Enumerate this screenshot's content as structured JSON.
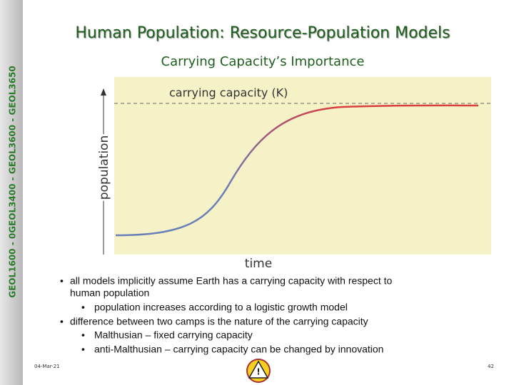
{
  "header": {
    "title": "Human Population: Resource-Population Models",
    "subtitle": "Carrying Capacity’s Importance"
  },
  "sidebar": {
    "label": "GEOL1600 - 0GEOL3400 - GEOL3600 - GEOL3650"
  },
  "figure": {
    "k_label": "carrying capacity (K)",
    "y_label": "population",
    "x_label": "time"
  },
  "bullets": [
    {
      "text": "all models implicitly assume Earth has a carrying capacity with respect to",
      "cont": "human population",
      "sub": [
        "population increases according to a logistic growth model"
      ]
    },
    {
      "text": "difference between two camps is the nature of the carrying capacity",
      "sub": [
        "Malthusian – fixed carrying capacity",
        "anti-Malthusian – carrying capacity can be changed by innovation"
      ]
    }
  ],
  "footer": {
    "date": "04-Mar-21",
    "page": "42"
  }
}
